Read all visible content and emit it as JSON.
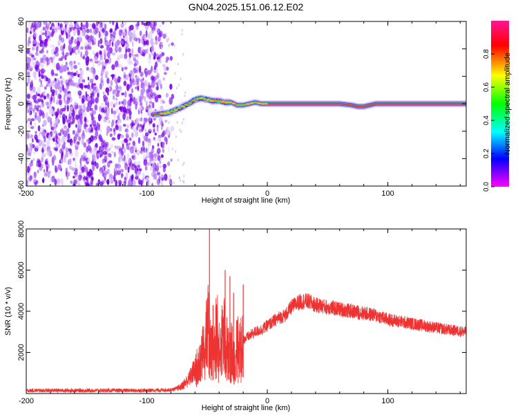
{
  "title": "GN04.2025.151.06.12.E02",
  "colors": {
    "axis": "#000000",
    "snr_line": "#ee3333",
    "noise_purple": "#8a2be2",
    "colorbar_stops": [
      "#ff00ff",
      "#0000ff",
      "#00ffff",
      "#00ff00",
      "#ffff00",
      "#ff0000",
      "#ff1493"
    ]
  },
  "chart_data": [
    {
      "type": "heatmap",
      "name": "spectrogram",
      "xlabel": "Height of straight line (km)",
      "ylabel": "Frequency (Hz)",
      "xlim": [
        -200,
        165
      ],
      "ylim": [
        -60,
        60
      ],
      "xticks": [
        "-200",
        "-100",
        "0",
        "100"
      ],
      "yticks": [
        "60",
        "40",
        "20",
        "0",
        "-20",
        "-40",
        "-60"
      ],
      "colorbar": {
        "label": "Normalized spectral amplitude",
        "range": [
          0,
          1
        ],
        "ticks": [
          "0.0",
          "0.2",
          "0.4",
          "0.6",
          "0.8"
        ]
      },
      "signal_track": {
        "x": [
          -95,
          -85,
          -80,
          -75,
          -70,
          -65,
          -60,
          -55,
          -50,
          -45,
          -40,
          -35,
          -30,
          -25,
          -20,
          -15,
          -10,
          -5,
          0,
          20,
          40,
          60,
          70,
          75,
          80,
          85,
          90,
          100,
          130,
          165
        ],
        "frequency": [
          -8,
          -7,
          -6,
          -4,
          -2,
          0,
          3,
          4,
          3,
          2,
          2,
          1,
          1,
          -1,
          -1,
          0,
          1,
          0,
          0,
          0,
          0,
          0,
          -1,
          -2,
          -2,
          -1,
          0,
          0,
          0,
          0
        ]
      },
      "noise_region": {
        "x_range": [
          -200,
          -80
        ],
        "frequency_range": [
          -60,
          60
        ]
      }
    },
    {
      "type": "line",
      "name": "snr",
      "xlabel": "Height of straight line (km)",
      "ylabel": "SNR (10 * v/v)",
      "xlim": [
        -200,
        165
      ],
      "ylim": [
        0,
        8000
      ],
      "xticks": [
        "-200",
        "-100",
        "0",
        "100"
      ],
      "yticks": [
        "8000",
        "6000",
        "4000",
        "2000"
      ],
      "envelope": {
        "x": [
          -200,
          -150,
          -100,
          -80,
          -72,
          -65,
          -60,
          -55,
          -52,
          -50,
          -48,
          -45,
          -42,
          -40,
          -38,
          -35,
          -33,
          -30,
          -28,
          -25,
          -20,
          -15,
          -10,
          -5,
          0,
          5,
          10,
          15,
          20,
          25,
          30,
          35,
          40,
          50,
          60,
          70,
          80,
          90,
          100,
          110,
          120,
          130,
          140,
          150,
          165
        ],
        "y": [
          150,
          150,
          150,
          180,
          300,
          700,
          1200,
          2000,
          3000,
          4200,
          2500,
          2200,
          3500,
          2200,
          3000,
          3200,
          2100,
          2300,
          2000,
          2400,
          2600,
          2800,
          3000,
          3100,
          3300,
          3500,
          3700,
          3800,
          4200,
          4400,
          4500,
          4450,
          4300,
          4200,
          4100,
          4000,
          3900,
          3800,
          3600,
          3500,
          3400,
          3300,
          3200,
          3100,
          3000
        ]
      },
      "spikes": [
        {
          "x": -48,
          "y": 8000
        },
        {
          "x": -45,
          "y": 4300
        },
        {
          "x": -35,
          "y": 6000
        },
        {
          "x": -31,
          "y": 5700
        },
        {
          "x": -28,
          "y": 4900
        },
        {
          "x": -20,
          "y": 5300
        }
      ]
    }
  ]
}
